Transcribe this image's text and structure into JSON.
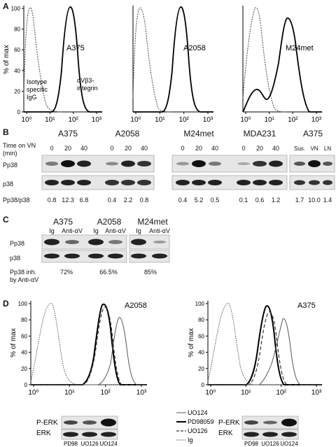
{
  "panel_letters": [
    "A",
    "B",
    "C",
    "D"
  ],
  "panel_a": {
    "ylabel": "% of max",
    "yticks": [
      "0",
      "20",
      "40",
      "60",
      "80",
      "100"
    ],
    "xticks": [
      "10⁰",
      "10¹",
      "10²",
      "10³"
    ],
    "cells": [
      "A375",
      "A2058",
      "M24met"
    ],
    "isotype_label_lines": [
      "Isotype",
      "specific",
      "IgG"
    ],
    "integrin_label_lines": [
      "αVβ3-",
      "integrin"
    ]
  },
  "panel_b": {
    "time_label_lines": [
      "Time on VN",
      "(min)"
    ],
    "groups": [
      {
        "name": "A375",
        "lanes": [
          "0",
          "20",
          "40"
        ],
        "ratios": [
          "0.8",
          "12.3",
          "6.8"
        ]
      },
      {
        "name": "A2058",
        "lanes": [
          "0",
          "20",
          "40"
        ],
        "ratios": [
          "0.4",
          "2.2",
          "0.8"
        ]
      },
      {
        "name": "M24met",
        "lanes": [
          "0",
          "20",
          "40"
        ],
        "ratios": [
          "0.4",
          "5.2",
          "0.5"
        ]
      },
      {
        "name": "MDA231",
        "lanes": [
          "0",
          "20",
          "40"
        ],
        "ratios": [
          "0.1",
          "0.6",
          "1.2"
        ]
      },
      {
        "name": "A375",
        "lanes": [
          "Sus.",
          "VN",
          "LN"
        ],
        "ratios": [
          "1.7",
          "10.0",
          "1.4"
        ]
      }
    ],
    "row_labels": [
      "Pp38",
      "p38"
    ],
    "ratio_label": "Pp38/p38"
  },
  "panel_c": {
    "cells": [
      "A375",
      "A2058",
      "M24met"
    ],
    "lane_labels": [
      "Ig",
      "Anti-αV"
    ],
    "row_labels": [
      "Pp38",
      "p38"
    ],
    "inh_label_lines": [
      "Pp38 inh.",
      "by Anti-αV"
    ],
    "inhibitions": [
      "72%",
      "66.5%",
      "85%"
    ]
  },
  "panel_d": {
    "ylabel": "% of max",
    "yticks": [
      "0",
      "20",
      "40",
      "60",
      "80",
      "100"
    ],
    "xticks": [
      "10⁰",
      "10¹",
      "10²",
      "10³"
    ],
    "cells": [
      "A2058",
      "A375"
    ],
    "legend": [
      "UO124",
      "PD98059",
      "UO126",
      "Ig"
    ],
    "blot_rows": [
      "P-ERK",
      "ERK"
    ],
    "blot_lanes": [
      "PD98",
      "UO126",
      "UO124"
    ]
  }
}
